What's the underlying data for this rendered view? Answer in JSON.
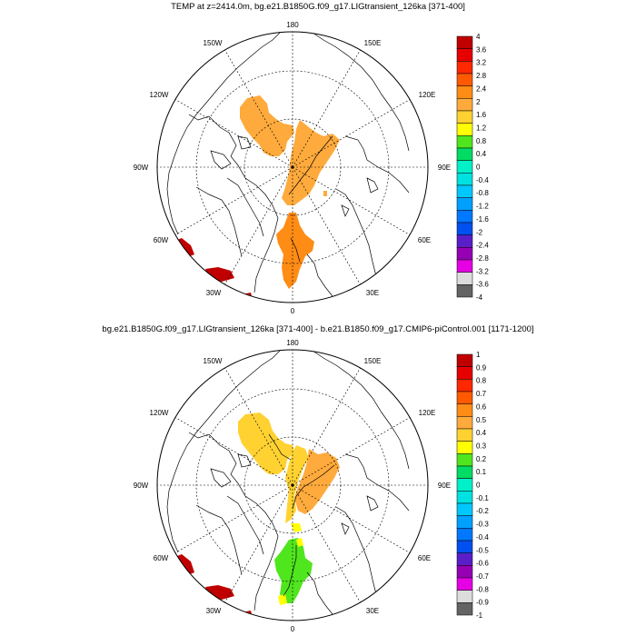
{
  "panel1": {
    "title": "TEMP at z=2414.0m, bg.e21.B1850G.f09_g17.LIGtransient_126ka [371-400]",
    "colorbar": {
      "labels": [
        "4",
        "3.6",
        "3.2",
        "2.8",
        "2.4",
        "2",
        "1.6",
        "1.2",
        "0.8",
        "0.4",
        "0",
        "-0.4",
        "-0.8",
        "-1.2",
        "-1.6",
        "-2",
        "-2.4",
        "-2.8",
        "-3.2",
        "-3.6",
        "-4"
      ]
    }
  },
  "panel2": {
    "title": "bg.e21.B1850G.f09_g17.LIGtransient_126ka [371-400] - b.e21.B1850.f09_g17.CMIP6-piControl.001 [1171-1200]",
    "colorbar": {
      "labels": [
        "1",
        "0.9",
        "0.8",
        "0.7",
        "0.6",
        "0.5",
        "0.4",
        "0.3",
        "0.2",
        "0.1",
        "0",
        "-0.1",
        "-0.2",
        "-0.3",
        "-0.4",
        "-0.5",
        "-0.6",
        "-0.7",
        "-0.8",
        "-0.9",
        "-1"
      ]
    }
  },
  "map_labels": {
    "lon180": "180",
    "lon150w": "150W",
    "lon150e": "150E",
    "lon120w": "120W",
    "lon120e": "120E",
    "lon90w": "90W",
    "lon90e": "90E",
    "lon60w": "60W",
    "lon60e": "60E",
    "lon30w": "30W",
    "lon30e": "30E",
    "lon0": "0"
  },
  "colors": {
    "palette": [
      "#c00000",
      "#e60000",
      "#ff2800",
      "#ff5a00",
      "#ff8c14",
      "#ffaa3c",
      "#ffd232",
      "#ffff00",
      "#50e61e",
      "#00dc64",
      "#00f0c8",
      "#00e1e1",
      "#00c8ff",
      "#00a0ff",
      "#0078ff",
      "#0050f0",
      "#5a1ec8",
      "#9600b4",
      "#e600e6",
      "#dcdcdc",
      "#646464"
    ]
  }
}
